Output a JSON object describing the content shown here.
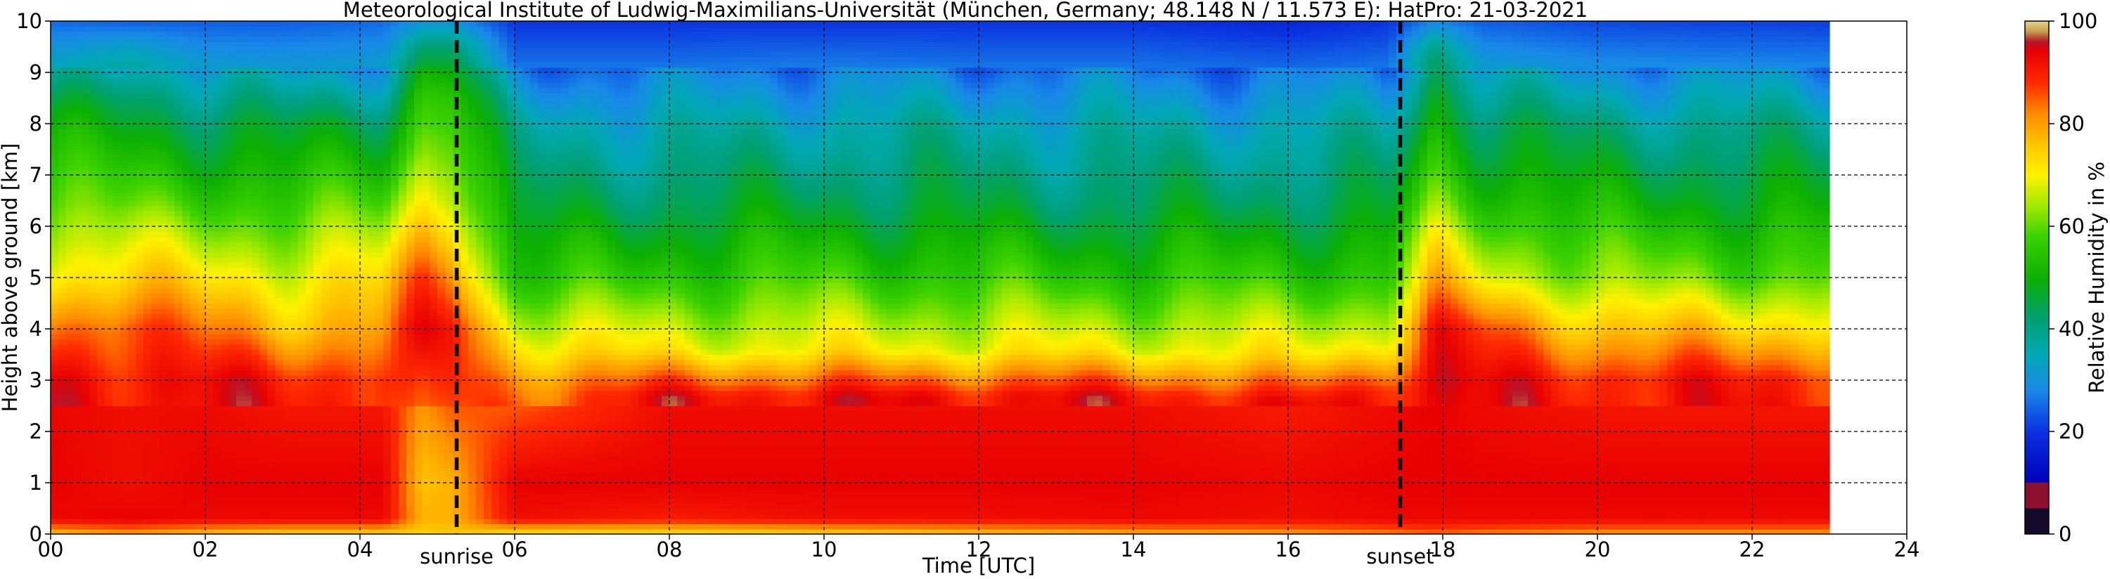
{
  "chart_data": {
    "type": "heatmap",
    "title": "Meteorological Institute of Ludwig-Maximilians-Universität (München, Germany; 48.148 N / 11.573 E):    HatPro: 21-03-2021",
    "xlabel": "Time [UTC]",
    "ylabel": "Height above ground [km]",
    "xlim": [
      0,
      24
    ],
    "ylim": [
      0,
      10
    ],
    "x_ticks": [
      "00",
      "02",
      "04",
      "06",
      "08",
      "10",
      "12",
      "14",
      "16",
      "18",
      "20",
      "22",
      "24"
    ],
    "y_ticks": [
      "0",
      "1",
      "2",
      "3",
      "4",
      "5",
      "6",
      "7",
      "8",
      "9",
      "10"
    ],
    "grid": true,
    "data_end_hour": 23.0,
    "annotations": [
      {
        "label": "sunrise",
        "x": 5.25
      },
      {
        "label": "sunset",
        "x": 17.45
      }
    ],
    "colorbar": {
      "label": "Relative Humidity in %",
      "min": 0,
      "max": 100,
      "ticks": [
        "0",
        "20",
        "40",
        "60",
        "80",
        "100"
      ],
      "colors": [
        {
          "v": 0,
          "c": "#150a2a"
        },
        {
          "v": 5,
          "c": "#150a2a"
        },
        {
          "v": 5.1,
          "c": "#8b0f2e"
        },
        {
          "v": 10,
          "c": "#8b0f2e"
        },
        {
          "v": 10.1,
          "c": "#0000b8"
        },
        {
          "v": 20,
          "c": "#0a32e0"
        },
        {
          "v": 28,
          "c": "#1888e8"
        },
        {
          "v": 35,
          "c": "#00a8b4"
        },
        {
          "v": 42,
          "c": "#00a070"
        },
        {
          "v": 50,
          "c": "#0cb000"
        },
        {
          "v": 58,
          "c": "#3cd200"
        },
        {
          "v": 64,
          "c": "#a0ea00"
        },
        {
          "v": 70,
          "c": "#fff200"
        },
        {
          "v": 76,
          "c": "#ffc400"
        },
        {
          "v": 82,
          "c": "#ff8a00"
        },
        {
          "v": 88,
          "c": "#ff2a00"
        },
        {
          "v": 94,
          "c": "#e80000"
        },
        {
          "v": 96,
          "c": "#b81428"
        },
        {
          "v": 98,
          "c": "#c8a050"
        },
        {
          "v": 100,
          "c": "#e6d490"
        }
      ]
    },
    "rh_profile_by_hour": [
      {
        "t": 0.0,
        "h": [
          0,
          0.3,
          1,
          3,
          4,
          5,
          6.5,
          8,
          9,
          10
        ],
        "rh": [
          76,
          93,
          94,
          93,
          84,
          72,
          60,
          48,
          35,
          25
        ]
      },
      {
        "t": 1.0,
        "h": [
          0,
          0.3,
          1,
          3,
          4,
          5,
          6.5,
          8.5,
          9.5,
          10
        ],
        "rh": [
          80,
          94,
          92,
          92,
          88,
          74,
          58,
          45,
          33,
          24
        ]
      },
      {
        "t": 2.0,
        "h": [
          0,
          0.3,
          1,
          3,
          4,
          5,
          6.5,
          8,
          9,
          10
        ],
        "rh": [
          76,
          93,
          94,
          92,
          82,
          72,
          58,
          45,
          33,
          24
        ]
      },
      {
        "t": 3.0,
        "h": [
          0,
          0.3,
          1,
          3,
          4,
          5,
          6.5,
          8,
          9,
          10
        ],
        "rh": [
          74,
          93,
          94,
          90,
          78,
          70,
          56,
          44,
          32,
          24
        ]
      },
      {
        "t": 4.3,
        "h": [
          0,
          0.3,
          1,
          3,
          4,
          5,
          6.5,
          8,
          9,
          10
        ],
        "rh": [
          74,
          93,
          94,
          90,
          80,
          72,
          58,
          46,
          33,
          25
        ]
      },
      {
        "t": 4.8,
        "h": [
          0,
          0.3,
          1,
          3,
          4,
          5,
          6.5,
          8.5,
          9.5,
          10
        ],
        "rh": [
          74,
          78,
          76,
          82,
          90,
          86,
          72,
          55,
          42,
          30
        ]
      },
      {
        "t": 5.2,
        "h": [
          0,
          0.3,
          1,
          3,
          4,
          5,
          6.5,
          8.5,
          9.5,
          10
        ],
        "rh": [
          76,
          78,
          78,
          88,
          92,
          84,
          70,
          55,
          42,
          30
        ]
      },
      {
        "t": 6.0,
        "h": [
          0,
          0.3,
          1,
          3,
          4,
          5,
          6.5,
          8,
          9,
          10
        ],
        "rh": [
          72,
          92,
          94,
          82,
          68,
          54,
          44,
          36,
          27,
          20
        ]
      },
      {
        "t": 8.0,
        "h": [
          0,
          0.3,
          1,
          2.7,
          3.6,
          5,
          6.5,
          8,
          9,
          10
        ],
        "rh": [
          72,
          90,
          94,
          92,
          70,
          56,
          44,
          35,
          27,
          20
        ]
      },
      {
        "t": 10.0,
        "h": [
          0,
          0.3,
          1,
          2.7,
          3.6,
          5,
          6.5,
          8,
          9,
          10
        ],
        "rh": [
          74,
          92,
          94,
          92,
          70,
          57,
          45,
          36,
          28,
          20
        ]
      },
      {
        "t": 12.0,
        "h": [
          0,
          0.3,
          1,
          2.7,
          3.6,
          5,
          6.5,
          8,
          9,
          10
        ],
        "rh": [
          76,
          92,
          94,
          92,
          70,
          56,
          44,
          36,
          27,
          20
        ]
      },
      {
        "t": 14.0,
        "h": [
          0,
          0.3,
          1,
          2.7,
          3.6,
          5,
          6.5,
          8,
          9,
          10
        ],
        "rh": [
          78,
          93,
          94,
          92,
          70,
          55,
          43,
          35,
          27,
          20
        ]
      },
      {
        "t": 16.0,
        "h": [
          0,
          0.3,
          1,
          2.6,
          3.5,
          5,
          6.5,
          8,
          9,
          10
        ],
        "rh": [
          80,
          92,
          93,
          90,
          70,
          56,
          44,
          35,
          26,
          18
        ]
      },
      {
        "t": 17.3,
        "h": [
          0,
          0.3,
          1,
          2.8,
          3.7,
          5,
          6.5,
          8,
          9,
          10
        ],
        "rh": [
          82,
          93,
          94,
          92,
          72,
          56,
          44,
          35,
          27,
          20
        ]
      },
      {
        "t": 17.9,
        "h": [
          0,
          0.3,
          1,
          3,
          4,
          5,
          6.5,
          8.5,
          9.5,
          10
        ],
        "rh": [
          84,
          93,
          94,
          94,
          90,
          76,
          62,
          50,
          40,
          28
        ]
      },
      {
        "t": 18.5,
        "h": [
          0,
          0.3,
          1,
          3,
          4,
          5,
          6.5,
          8,
          9,
          10
        ],
        "rh": [
          82,
          93,
          94,
          92,
          86,
          70,
          56,
          44,
          33,
          24
        ]
      },
      {
        "t": 20.0,
        "h": [
          0,
          0.3,
          1,
          3,
          4,
          5,
          6.5,
          8,
          9,
          10
        ],
        "rh": [
          80,
          93,
          94,
          90,
          76,
          62,
          50,
          40,
          30,
          22
        ]
      },
      {
        "t": 23.0,
        "h": [
          0,
          0.3,
          1,
          3,
          4,
          5,
          6.5,
          8,
          9,
          10
        ],
        "rh": [
          80,
          93,
          94,
          90,
          74,
          60,
          48,
          38,
          29,
          21
        ]
      }
    ]
  }
}
